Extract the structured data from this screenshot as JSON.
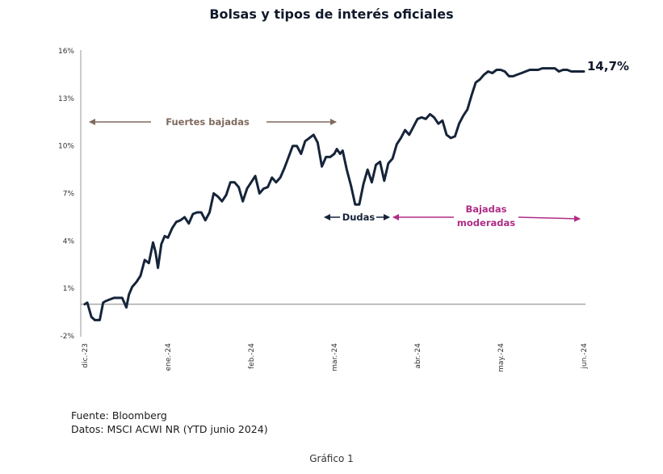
{
  "chart_data": {
    "type": "line",
    "title": "Bolsas y tipos de interés oficiales",
    "xlabel": "",
    "ylabel": "",
    "ylim": [
      -2,
      16
    ],
    "y_ticks": [
      "16%",
      "13%",
      "10%",
      "7%",
      "4%",
      "1%",
      "-2%"
    ],
    "y_tick_values": [
      16,
      13,
      10,
      7,
      4,
      1,
      -2
    ],
    "x_ticks": [
      "dic.-23",
      "ene.-24",
      "feb.-24",
      "mar.-24",
      "abr.-24",
      "may.-24",
      "jun.-24"
    ],
    "x_tick_values": [
      0,
      1,
      2,
      3,
      4,
      5,
      6
    ],
    "baseline": 0,
    "series": [
      {
        "name": "MSCI ACWI NR",
        "color": "#16243a",
        "x": [
          0,
          0.03,
          0.08,
          0.12,
          0.18,
          0.22,
          0.25,
          0.3,
          0.35,
          0.4,
          0.45,
          0.5,
          0.53,
          0.57,
          0.62,
          0.67,
          0.72,
          0.77,
          0.82,
          0.85,
          0.88,
          0.92,
          0.96,
          1.0,
          1.05,
          1.1,
          1.15,
          1.2,
          1.25,
          1.3,
          1.35,
          1.4,
          1.45,
          1.5,
          1.55,
          1.6,
          1.65,
          1.7,
          1.75,
          1.8,
          1.85,
          1.9,
          1.95,
          2.0,
          2.05,
          2.1,
          2.15,
          2.2,
          2.25,
          2.3,
          2.35,
          2.4,
          2.45,
          2.5,
          2.55,
          2.6,
          2.65,
          2.7,
          2.75,
          2.8,
          2.85,
          2.9,
          2.95,
          3.0,
          3.03,
          3.07,
          3.1,
          3.15,
          3.2,
          3.25,
          3.3,
          3.35,
          3.4,
          3.45,
          3.5,
          3.55,
          3.6,
          3.65,
          3.7,
          3.75,
          3.8,
          3.85,
          3.9,
          3.95,
          4.0,
          4.05,
          4.1,
          4.15,
          4.2,
          4.25,
          4.3,
          4.35,
          4.4,
          4.45,
          4.5,
          4.55,
          4.6,
          4.65,
          4.7,
          4.75,
          4.8,
          4.85,
          4.9,
          4.95,
          5.0,
          5.05,
          5.1,
          5.15,
          5.2,
          5.25,
          5.3,
          5.35,
          5.4,
          5.45,
          5.5,
          5.55,
          5.6,
          5.65,
          5.7,
          5.75,
          5.8,
          5.85,
          5.9,
          5.95,
          6.0
        ],
        "y": [
          0,
          0.1,
          -0.8,
          -1.0,
          -1.0,
          0.1,
          0.2,
          0.3,
          0.4,
          0.4,
          0.4,
          -0.2,
          0.6,
          1.1,
          1.4,
          1.8,
          2.8,
          2.6,
          3.9,
          3.3,
          2.3,
          3.8,
          4.3,
          4.2,
          4.8,
          5.2,
          5.3,
          5.5,
          5.1,
          5.7,
          5.8,
          5.8,
          5.3,
          5.8,
          7.0,
          6.8,
          6.5,
          6.9,
          7.7,
          7.7,
          7.4,
          6.5,
          7.3,
          7.7,
          8.1,
          7.0,
          7.3,
          7.4,
          8.0,
          7.7,
          8.0,
          8.6,
          9.3,
          10.0,
          10.0,
          9.5,
          10.3,
          10.5,
          10.7,
          10.2,
          8.7,
          9.3,
          9.3,
          9.5,
          9.8,
          9.5,
          9.7,
          8.5,
          7.5,
          6.3,
          6.3,
          7.6,
          8.5,
          7.7,
          8.8,
          9.0,
          7.8,
          8.9,
          9.2,
          10.1,
          10.5,
          11.0,
          10.7,
          11.2,
          11.7,
          11.8,
          11.7,
          12.0,
          11.8,
          11.4,
          11.6,
          10.7,
          10.5,
          10.6,
          11.4,
          11.9,
          12.3,
          13.2,
          14.0,
          14.2,
          14.5,
          14.7,
          14.6,
          14.8,
          14.8,
          14.7,
          14.4,
          14.4,
          14.5,
          14.6,
          14.7,
          14.8,
          14.8,
          14.8,
          14.9,
          14.9,
          14.9,
          14.9,
          14.7,
          14.8,
          14.8,
          14.7,
          14.7,
          14.7,
          14.7
        ]
      }
    ],
    "end_label": "14,7%",
    "annotations": {
      "fuertes": "Fuertes bajadas",
      "dudas": "Dudas",
      "moderadas_1": "Bajadas",
      "moderadas_2": "moderadas"
    },
    "colors": {
      "line": "#16243a",
      "axis": "#9a9a9a",
      "fuertes": "#7f6a5e",
      "dudas": "#17243a",
      "moderadas": "#b02d86"
    }
  },
  "footer": {
    "source": "Fuente: Bloomberg",
    "data": "Datos: MSCI ACWI NR (YTD junio 2024)",
    "caption": "Gráfico 1"
  }
}
